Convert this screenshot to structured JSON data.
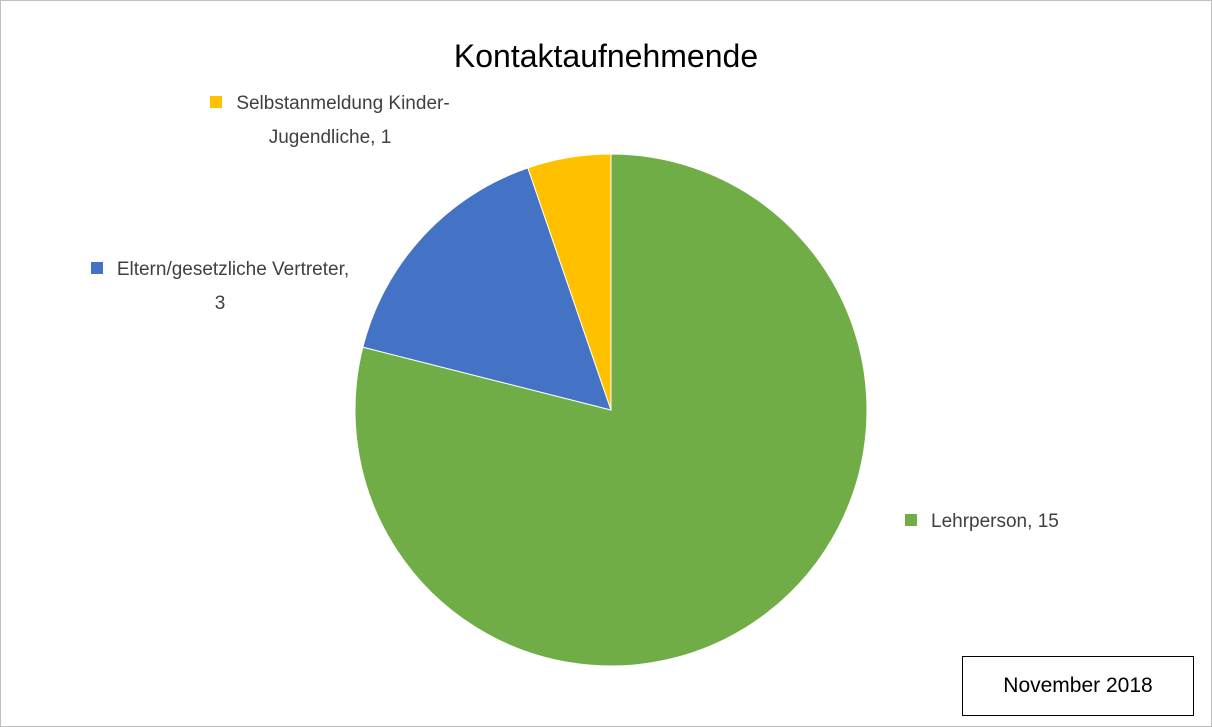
{
  "chart_data": {
    "type": "pie",
    "title": "Kontaktaufnehmende",
    "categories": [
      "Lehrperson",
      "Eltern/gesetzliche Vertreter",
      "Selbstanmeldung Kinder- Jugendliche"
    ],
    "values": [
      15,
      3,
      1
    ],
    "colors": [
      "#70ad47",
      "#4472c4",
      "#ffc000"
    ],
    "annotation": "November 2018"
  }
}
